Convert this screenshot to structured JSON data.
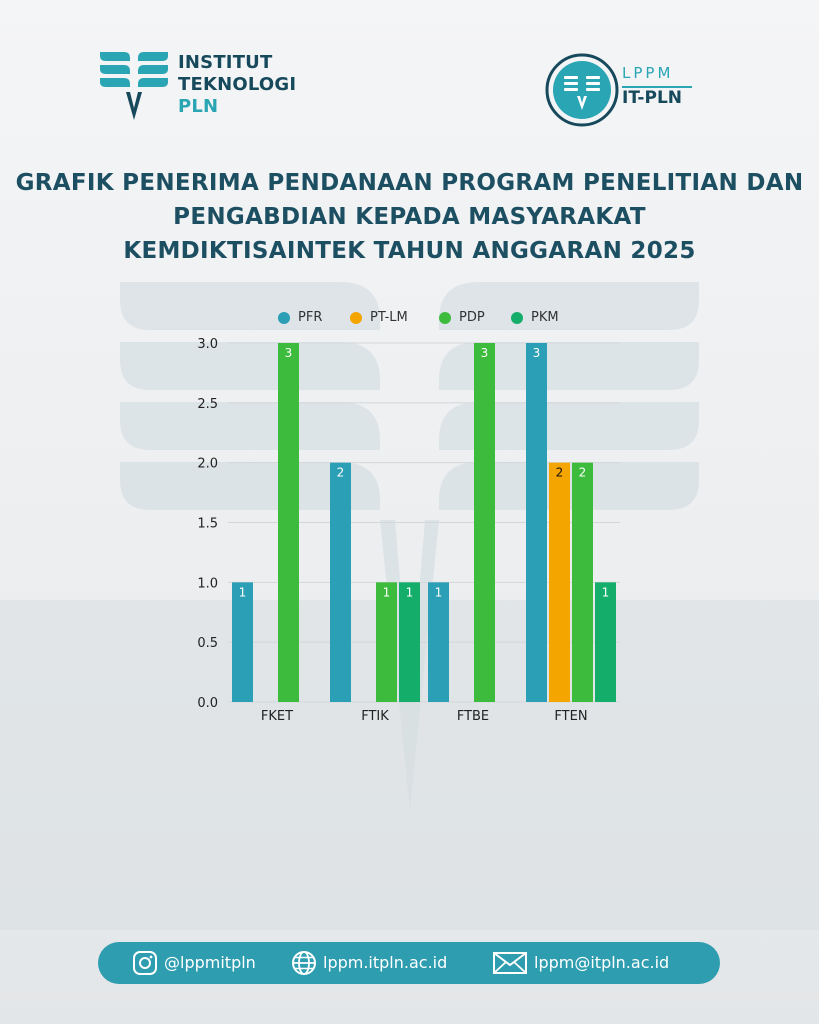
{
  "colors": {
    "title": "#1d4f63",
    "PFR": "#2b9fb5",
    "PT-LM": "#f5a500",
    "PDP": "#3dbb3d",
    "PKM": "#14ad6a",
    "footer": "#2f9db0"
  },
  "header": {
    "institute_lines": [
      "INSTITUT",
      "TEKNOLOGI",
      "PLN"
    ],
    "lppm_top": "LPPM",
    "lppm_bottom": "IT-PLN"
  },
  "title_lines": [
    "GRAFIK PENERIMA PENDANAAN PROGRAM PENELITIAN DAN",
    "PENGABDIAN KEPADA MASYARAKAT",
    "KEMDIKTISAINTEK TAHUN ANGGARAN 2025"
  ],
  "chart_data": {
    "type": "bar",
    "title": "",
    "xlabel": "",
    "ylabel": "",
    "categories": [
      "FKET",
      "FTIK",
      "FTBE",
      "FTEN"
    ],
    "series": [
      {
        "name": "PFR",
        "color": "#2b9fb5",
        "values": [
          1,
          2,
          1,
          3
        ]
      },
      {
        "name": "PT-LM",
        "color": "#f5a500",
        "values": [
          0,
          0,
          0,
          2
        ]
      },
      {
        "name": "PDP",
        "color": "#3dbb3d",
        "values": [
          3,
          1,
          3,
          2
        ]
      },
      {
        "name": "PKM",
        "color": "#14ad6a",
        "values": [
          0,
          1,
          0,
          1
        ]
      }
    ],
    "ylim": [
      0,
      3
    ],
    "yticks": [
      "0.0",
      "0.5",
      "1.0",
      "1.5",
      "2.0",
      "2.5",
      "3.0"
    ],
    "legend_position": "top",
    "data_labels": true,
    "grid": true
  },
  "footer": {
    "instagram_icon": "instagram-icon",
    "instagram": "@lppmitpln",
    "web_icon": "globe-icon",
    "website": "lppm.itpln.ac.id",
    "mail_icon": "mail-icon",
    "email": "lppm@itpln.ac.id"
  }
}
